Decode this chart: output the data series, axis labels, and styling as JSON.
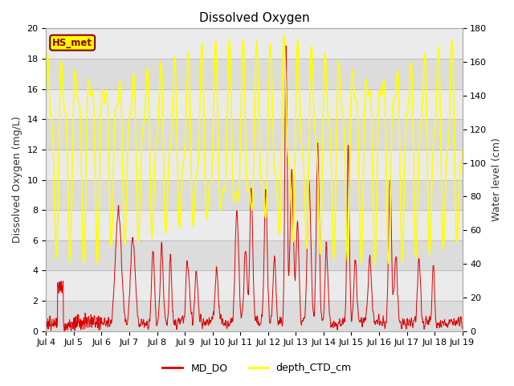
{
  "title": "Dissolved Oxygen",
  "ylabel_left": "Dissolved Oxygen (mg/L)",
  "ylabel_right": "Water level (cm)",
  "xlabel": "",
  "ylim_left": [
    0,
    20
  ],
  "ylim_right": [
    0,
    180
  ],
  "background_color": "#ffffff",
  "plot_bg_color": "#f0f0f0",
  "annotation_text": "HS_met",
  "annotation_bg": "#ffff00",
  "annotation_border": "#8b0000",
  "annotation_text_color": "#8b0000",
  "x_tick_labels": [
    "Jul 4",
    "Jul 5",
    "Jul 6",
    "Jul 7",
    "Jul 8",
    "Jul 9",
    "Jul 10",
    "Jul 11",
    "Jul 12",
    "Jul 13",
    "Jul 14",
    "Jul 15",
    "Jul 16",
    "Jul 17",
    "Jul 18",
    "Jul 19"
  ],
  "x_tick_positions": [
    0,
    96,
    192,
    288,
    384,
    480,
    576,
    672,
    768,
    864,
    960,
    1056,
    1152,
    1248,
    1344,
    1440
  ],
  "n_points": 1441,
  "grid_color": "#cccccc",
  "band_colors": [
    "#dcdcdc",
    "#ebebeb"
  ],
  "line_color_do": "#dd0000",
  "line_color_depth": "#ffff00",
  "legend_labels": [
    "MD_DO",
    "depth_CTD_cm"
  ],
  "legend_colors": [
    "#dd0000",
    "#ffff00"
  ],
  "title_fontsize": 11
}
